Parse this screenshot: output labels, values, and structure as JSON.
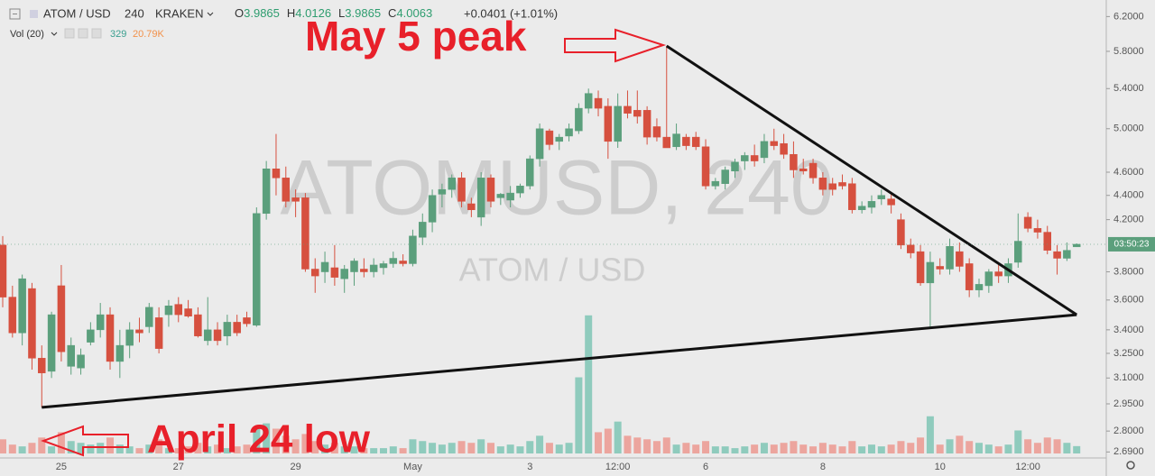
{
  "chart_data": {
    "type": "candlestick",
    "title": "ATOM / USD",
    "interval": "240",
    "exchange": "KRAKEN",
    "ohlc_readout": [
      {
        "label": "O",
        "value": 3.9865
      },
      {
        "label": "H",
        "value": 4.0126
      },
      {
        "label": "L",
        "value": 3.9865
      },
      {
        "label": "C",
        "value": 4.0063
      }
    ],
    "change": "+0.0401 (+1.01%)",
    "watermark": "ATOMUSD, 240",
    "watermark_sub": "ATOM / USD",
    "countdown": "03:50:23",
    "log_scale": true,
    "up_color": "#5b9f7c",
    "down_color": "#d6503f",
    "ylim": [
      2.65,
      6.4
    ],
    "yticks": [
      {
        "value": 6.2,
        "label": "6.2000"
      },
      {
        "value": 5.8,
        "label": "5.8000"
      },
      {
        "value": 5.4,
        "label": "5.4000"
      },
      {
        "value": 5.0,
        "label": "5.0000"
      },
      {
        "value": 4.6,
        "label": "4.6000"
      },
      {
        "value": 4.4,
        "label": "4.4000"
      },
      {
        "value": 4.2,
        "label": "4.2000"
      },
      {
        "value": 3.8,
        "label": "3.8000"
      },
      {
        "value": 3.6,
        "label": "3.6000"
      },
      {
        "value": 3.4,
        "label": "3.4000"
      },
      {
        "value": 3.25,
        "label": "3.2500"
      },
      {
        "value": 3.1,
        "label": "3.1000"
      },
      {
        "value": 2.95,
        "label": "2.9500"
      },
      {
        "value": 2.8,
        "label": "2.8000"
      },
      {
        "value": 2.69,
        "label": "2.6900"
      }
    ],
    "categories": [
      null,
      null,
      null,
      null,
      null,
      null,
      "25",
      null,
      null,
      null,
      null,
      null,
      null,
      null,
      null,
      null,
      null,
      null,
      "27",
      null,
      null,
      null,
      null,
      null,
      null,
      null,
      null,
      null,
      null,
      null,
      "29",
      null,
      null,
      null,
      null,
      null,
      null,
      null,
      null,
      null,
      null,
      null,
      "May",
      null,
      null,
      null,
      null,
      null,
      null,
      null,
      null,
      null,
      null,
      null,
      "3",
      null,
      null,
      null,
      null,
      null,
      null,
      null,
      null,
      "12:00",
      null,
      null,
      null,
      null,
      null,
      null,
      null,
      null,
      "6",
      null,
      null,
      null,
      null,
      null,
      null,
      null,
      null,
      null,
      null,
      null,
      "8",
      null,
      null,
      null,
      null,
      null,
      null,
      null,
      null,
      null,
      null,
      null,
      "10",
      null,
      null,
      null,
      null,
      null,
      null,
      null,
      null,
      "12:00",
      null,
      null,
      null,
      null,
      null
    ],
    "open": [
      4.0,
      3.62,
      3.38,
      3.68,
      3.22,
      3.14,
      3.7,
      3.17,
      3.16,
      3.32,
      3.4,
      3.5,
      3.2,
      3.3,
      3.4,
      3.42,
      3.48,
      3.5,
      3.57,
      3.54,
      3.5,
      3.33,
      3.4,
      3.36,
      3.45,
      3.48,
      3.43,
      4.25,
      4.63,
      4.55,
      4.38,
      4.38,
      3.82,
      3.8,
      3.83,
      3.75,
      3.8,
      3.82,
      3.8,
      3.83,
      3.86,
      3.88,
      3.86,
      4.06,
      4.18,
      4.41,
      4.45,
      4.55,
      4.33,
      4.22,
      4.55,
      4.38,
      4.36,
      4.42,
      4.48,
      4.72,
      4.98,
      4.88,
      4.93,
      4.98,
      5.2,
      5.3,
      5.22,
      4.88,
      5.22,
      5.18,
      5.18,
      5.02,
      4.92,
      4.83,
      4.92,
      4.92,
      4.83,
      4.48,
      4.5,
      4.61,
      4.7,
      4.75,
      4.73,
      4.88,
      4.86,
      4.76,
      4.63,
      4.68,
      4.55,
      4.5,
      4.51,
      4.5,
      4.28,
      4.3,
      4.37,
      4.37,
      4.2,
      4.0,
      3.95,
      3.72,
      3.84,
      3.82,
      3.95,
      3.86,
      3.67,
      3.7,
      3.8,
      3.77,
      3.87,
      4.22,
      4.13,
      4.1,
      3.95,
      3.9,
      3.9865
    ],
    "high": [
      4.07,
      3.7,
      3.78,
      3.72,
      3.3,
      3.52,
      3.85,
      3.35,
      3.28,
      3.45,
      3.58,
      3.55,
      3.4,
      3.45,
      3.48,
      3.58,
      3.55,
      3.6,
      3.62,
      3.6,
      3.55,
      3.62,
      3.45,
      3.5,
      3.5,
      3.52,
      4.3,
      4.7,
      4.95,
      4.65,
      4.45,
      4.42,
      3.9,
      3.95,
      4.0,
      3.85,
      3.9,
      3.9,
      3.9,
      3.88,
      3.95,
      3.93,
      4.12,
      4.25,
      4.45,
      4.5,
      4.58,
      4.6,
      4.38,
      4.6,
      4.58,
      4.42,
      4.48,
      4.5,
      4.75,
      5.05,
      5.0,
      4.95,
      5.05,
      5.25,
      5.4,
      5.38,
      5.3,
      5.35,
      5.38,
      5.38,
      5.22,
      5.1,
      5.86,
      5.05,
      4.95,
      4.97,
      4.9,
      4.55,
      4.65,
      4.72,
      4.78,
      4.85,
      4.95,
      5.0,
      4.95,
      4.88,
      4.72,
      4.72,
      4.6,
      4.55,
      4.58,
      4.55,
      4.35,
      4.4,
      4.45,
      4.42,
      4.25,
      4.05,
      4.0,
      3.95,
      3.9,
      4.05,
      4.02,
      3.9,
      3.75,
      3.82,
      3.85,
      3.9,
      4.25,
      4.26,
      4.2,
      4.15,
      4.0,
      4.02,
      4.0126
    ],
    "low": [
      3.55,
      3.35,
      3.3,
      3.15,
      2.93,
      3.1,
      3.2,
      3.12,
      3.12,
      3.3,
      3.35,
      3.15,
      3.1,
      3.22,
      3.32,
      3.38,
      3.25,
      3.42,
      3.45,
      3.48,
      3.35,
      3.3,
      3.3,
      3.3,
      3.36,
      3.42,
      3.42,
      4.2,
      4.4,
      4.3,
      4.22,
      3.8,
      3.65,
      3.72,
      3.7,
      3.65,
      3.7,
      3.76,
      3.76,
      3.78,
      3.83,
      3.84,
      3.84,
      4.0,
      4.1,
      4.3,
      4.38,
      4.3,
      4.22,
      4.15,
      4.3,
      4.32,
      4.3,
      4.38,
      4.45,
      4.65,
      4.8,
      4.8,
      4.88,
      4.95,
      5.15,
      5.12,
      4.72,
      4.82,
      5.1,
      5.05,
      4.85,
      4.88,
      4.85,
      4.8,
      4.8,
      4.8,
      4.45,
      4.45,
      4.45,
      4.55,
      4.62,
      4.65,
      4.68,
      4.8,
      4.72,
      4.55,
      4.58,
      4.5,
      4.4,
      4.4,
      4.45,
      4.25,
      4.25,
      4.25,
      4.32,
      4.25,
      3.97,
      3.9,
      3.7,
      3.42,
      3.78,
      3.78,
      3.8,
      3.62,
      3.62,
      3.65,
      3.72,
      3.72,
      3.83,
      4.1,
      4.05,
      3.93,
      3.78,
      3.88,
      3.9865
    ],
    "close": [
      3.62,
      3.38,
      3.75,
      3.22,
      3.13,
      3.5,
      3.26,
      3.3,
      3.24,
      3.4,
      3.5,
      3.2,
      3.3,
      3.4,
      3.38,
      3.55,
      3.28,
      3.56,
      3.5,
      3.49,
      3.36,
      3.4,
      3.33,
      3.45,
      3.38,
      3.44,
      4.25,
      4.63,
      4.55,
      4.35,
      4.35,
      3.82,
      3.77,
      3.87,
      3.76,
      3.82,
      3.88,
      3.8,
      3.85,
      3.86,
      3.9,
      3.86,
      4.07,
      4.18,
      4.4,
      4.45,
      4.55,
      4.35,
      4.28,
      4.55,
      4.35,
      4.41,
      4.42,
      4.48,
      4.72,
      5.0,
      4.85,
      4.92,
      5.0,
      5.2,
      5.35,
      5.2,
      4.88,
      5.22,
      5.15,
      5.12,
      4.92,
      4.92,
      4.82,
      4.95,
      4.84,
      4.83,
      4.48,
      4.52,
      4.62,
      4.69,
      4.75,
      4.7,
      4.88,
      4.84,
      4.76,
      4.62,
      4.61,
      4.55,
      4.45,
      4.45,
      4.48,
      4.28,
      4.31,
      4.35,
      4.4,
      4.32,
      4.0,
      3.94,
      3.72,
      3.87,
      3.82,
      3.99,
      3.84,
      3.67,
      3.71,
      3.8,
      3.77,
      3.86,
      4.03,
      4.13,
      4.1,
      3.96,
      3.9,
      3.96,
      4.0063
    ],
    "volume": {
      "label": "Vol (20)",
      "readouts": [
        329,
        {
          "value": 20.79,
          "label": "20.79K"
        }
      ],
      "ylim": [
        0,
        420
      ],
      "up_color": "#8fcbbd",
      "down_color": "#eca59e",
      "values": [
        40,
        25,
        20,
        30,
        45,
        20,
        60,
        35,
        30,
        25,
        30,
        45,
        25,
        20,
        15,
        25,
        40,
        15,
        15,
        20,
        30,
        20,
        25,
        15,
        20,
        25,
        75,
        85,
        70,
        50,
        40,
        55,
        35,
        25,
        30,
        20,
        20,
        15,
        15,
        15,
        20,
        15,
        40,
        35,
        30,
        25,
        30,
        35,
        30,
        40,
        30,
        20,
        25,
        20,
        35,
        50,
        30,
        25,
        30,
        215,
        390,
        60,
        70,
        90,
        50,
        45,
        40,
        35,
        45,
        25,
        30,
        25,
        35,
        20,
        20,
        15,
        20,
        25,
        30,
        25,
        30,
        35,
        25,
        20,
        30,
        25,
        20,
        35,
        20,
        25,
        20,
        25,
        35,
        30,
        45,
        105,
        25,
        40,
        50,
        35,
        30,
        25,
        20,
        25,
        65,
        40,
        30,
        45,
        40,
        30,
        20.79
      ]
    },
    "trendlines": [
      {
        "from": {
          "x": 4,
          "y": 2.93
        },
        "to": {
          "x": 110,
          "y": 3.5
        }
      },
      {
        "from": {
          "x": 68,
          "y": 5.86
        },
        "to": {
          "x": 110,
          "y": 3.5
        }
      }
    ],
    "annotations": [
      {
        "text": "May 5 peak",
        "direction": "right"
      },
      {
        "text": "April 24 low",
        "direction": "left"
      }
    ]
  }
}
